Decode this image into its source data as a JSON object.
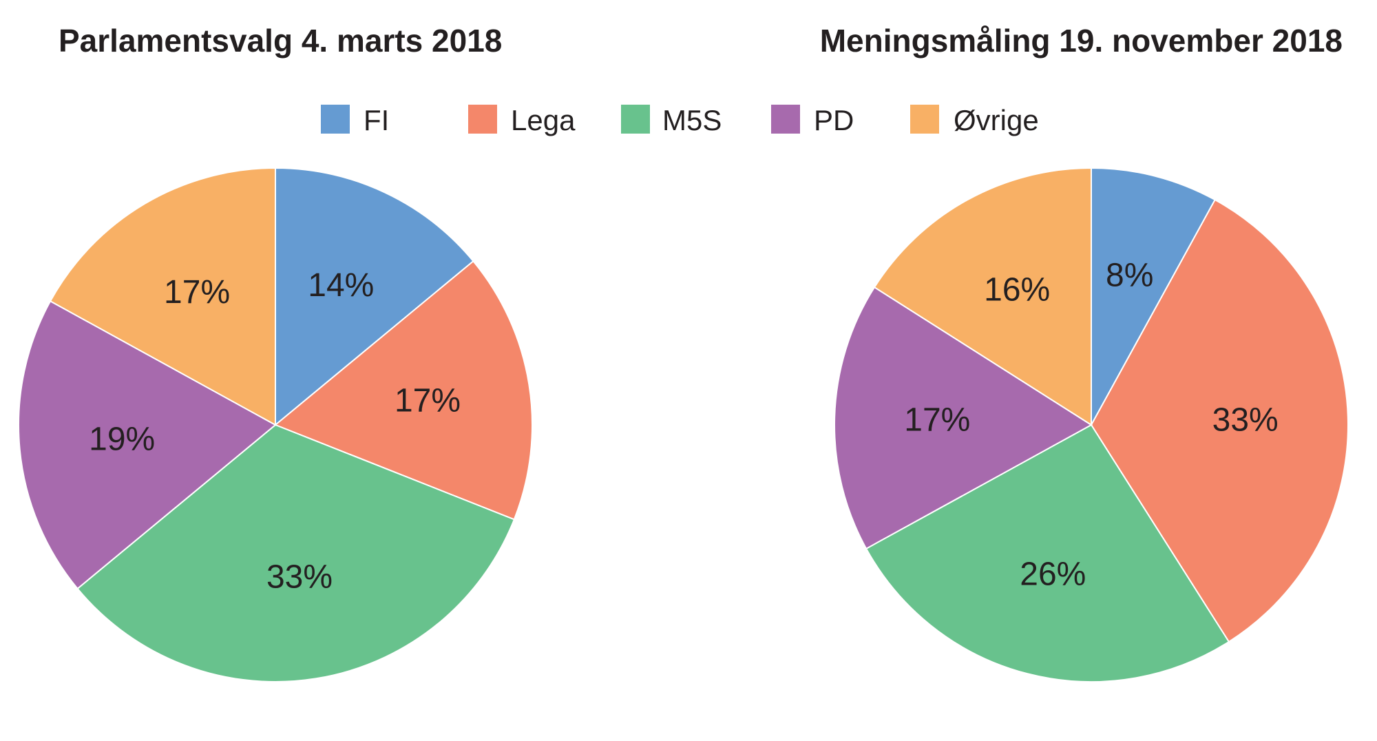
{
  "chart_data": [
    {
      "type": "pie",
      "title": "Parlamentsvalg 4. marts 2018",
      "categories": [
        "FI",
        "Lega",
        "M5S",
        "PD",
        "Øvrige"
      ],
      "values": [
        14,
        17,
        33,
        19,
        17
      ],
      "labels": [
        "14%",
        "17%",
        "33%",
        "19%",
        "17%"
      ],
      "unit": "%"
    },
    {
      "type": "pie",
      "title": "Meningsmåling 19. november 2018",
      "categories": [
        "FI",
        "Lega",
        "M5S",
        "PD",
        "Øvrige"
      ],
      "values": [
        8,
        33,
        26,
        17,
        16
      ],
      "labels": [
        "8%",
        "33%",
        "26%",
        "17%",
        "16%"
      ],
      "unit": "%"
    }
  ],
  "legend": {
    "placement": "top-center",
    "items": [
      {
        "label": "FI",
        "color": "#659bd2"
      },
      {
        "label": "Lega",
        "color": "#f4876a"
      },
      {
        "label": "M5S",
        "color": "#68c28d"
      },
      {
        "label": "PD",
        "color": "#a76aad"
      },
      {
        "label": "Øvrige",
        "color": "#f8b065"
      }
    ]
  }
}
